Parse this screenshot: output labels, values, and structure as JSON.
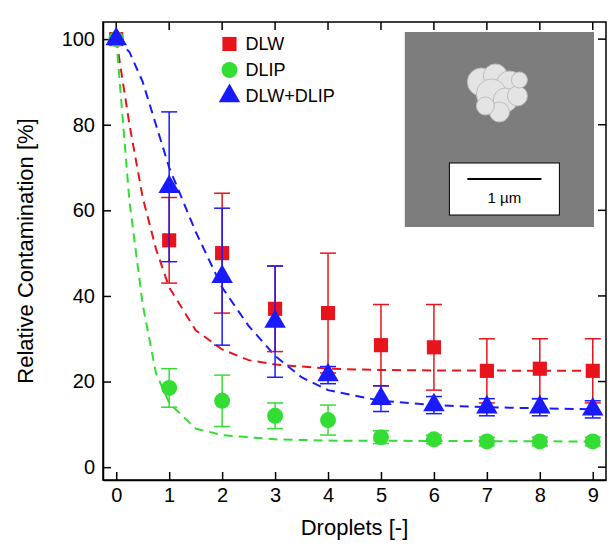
{
  "chart_data": {
    "type": "scatter",
    "x_label": "Droplets [-]",
    "y_label": "Relative Contamination [%]",
    "x": [
      0,
      1,
      2,
      3,
      4,
      5,
      6,
      7,
      8,
      9
    ],
    "xlim": [
      -0.25,
      9.25
    ],
    "xticks": [
      0,
      1,
      2,
      3,
      4,
      5,
      6,
      7,
      8,
      9
    ],
    "ylim": [
      -3,
      104
    ],
    "yticks": [
      0,
      20,
      40,
      60,
      80,
      100
    ],
    "legend": "top",
    "annotations": [
      {
        "text": "1 µm"
      }
    ],
    "series": [
      {
        "name": "DLW",
        "color": "#e8141c",
        "marker": "square",
        "values": [
          100,
          53,
          50,
          37,
          36,
          28.5,
          28,
          22.5,
          23,
          22.5
        ],
        "errors": [
          0,
          10,
          14,
          10,
          14,
          9.5,
          10,
          7.5,
          7,
          7.5
        ],
        "fit": {
          "line_style": "dashed",
          "x": [
            0,
            0.25,
            0.5,
            0.75,
            1,
            1.5,
            2,
            2.5,
            3,
            4,
            5,
            6,
            9
          ],
          "values": [
            100,
            80,
            63,
            51,
            42,
            32,
            27.5,
            25,
            24,
            23,
            22.7,
            22.6,
            22.5
          ]
        }
      },
      {
        "name": "DLIP",
        "color": "#33dd33",
        "marker": "circle",
        "values": [
          100,
          18.5,
          15.5,
          12,
          11,
          7,
          6.5,
          6,
          6,
          6
        ],
        "errors": [
          0,
          4.5,
          6,
          3,
          3.5,
          1.5,
          1,
          1,
          1,
          1
        ],
        "fit": {
          "line_style": "dashed",
          "x": [
            0,
            0.25,
            0.5,
            0.75,
            1,
            1.5,
            2,
            3,
            4,
            9
          ],
          "values": [
            100,
            62,
            38,
            22,
            15,
            9,
            7.5,
            6.5,
            6.2,
            6
          ]
        }
      },
      {
        "name": "DLW+DLIP",
        "color": "#1a1aff",
        "marker": "triangle",
        "values": [
          100,
          65.5,
          44.5,
          34,
          21.5,
          16,
          14.5,
          14,
          14,
          13.5
        ],
        "errors": [
          0,
          17.5,
          16,
          13,
          2,
          3,
          2,
          2,
          2,
          2
        ],
        "fit": {
          "line_style": "dashed",
          "x": [
            0,
            0.25,
            0.5,
            0.75,
            1,
            1.5,
            2,
            2.5,
            3,
            3.5,
            4,
            5,
            6,
            7,
            9
          ],
          "values": [
            100,
            97,
            90,
            80,
            70,
            55,
            42,
            33,
            26,
            21,
            18,
            15.5,
            14.5,
            14,
            13.5
          ]
        }
      }
    ]
  }
}
